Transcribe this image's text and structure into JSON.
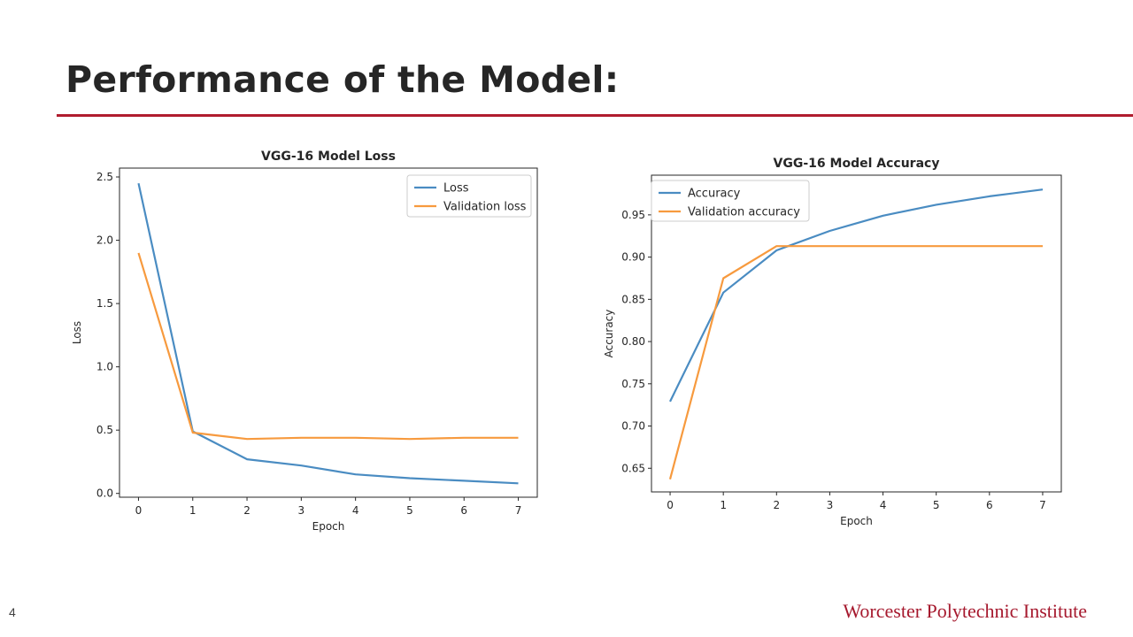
{
  "slide": {
    "title": "Performance of the Model:",
    "number": "4",
    "footer": "Worcester Polytechnic Institute"
  },
  "colors": {
    "accent": "#b01c2e",
    "series_train": "#4a8cc2",
    "series_val": "#f79a3e"
  },
  "chart_data": [
    {
      "type": "line",
      "title": "VGG-16 Model Loss",
      "xlabel": "Epoch",
      "ylabel": "Loss",
      "x": [
        0,
        1,
        2,
        3,
        4,
        5,
        6,
        7
      ],
      "xticks": [
        "0",
        "1",
        "2",
        "3",
        "4",
        "5",
        "6",
        "7"
      ],
      "yticks": [
        "0.0",
        "0.5",
        "1.0",
        "1.5",
        "2.0",
        "2.5"
      ],
      "xlim": [
        -0.35,
        7.35
      ],
      "ylim": [
        -0.03,
        2.57
      ],
      "grid": false,
      "legend_position": "top-right",
      "series": [
        {
          "name": "Loss",
          "values": [
            2.45,
            0.49,
            0.27,
            0.22,
            0.15,
            0.12,
            0.1,
            0.08
          ]
        },
        {
          "name": "Validation loss",
          "values": [
            1.9,
            0.48,
            0.43,
            0.44,
            0.44,
            0.43,
            0.44,
            0.44
          ]
        }
      ]
    },
    {
      "type": "line",
      "title": "VGG-16 Model Accuracy",
      "xlabel": "Epoch",
      "ylabel": "Accuracy",
      "x": [
        0,
        1,
        2,
        3,
        4,
        5,
        6,
        7
      ],
      "xticks": [
        "0",
        "1",
        "2",
        "3",
        "4",
        "5",
        "6",
        "7"
      ],
      "yticks": [
        "0.65",
        "0.70",
        "0.75",
        "0.80",
        "0.85",
        "0.90",
        "0.95"
      ],
      "xlim": [
        -0.35,
        7.35
      ],
      "ylim": [
        0.622,
        0.997
      ],
      "grid": false,
      "legend_position": "top-left",
      "series": [
        {
          "name": "Accuracy",
          "values": [
            0.729,
            0.858,
            0.908,
            0.931,
            0.949,
            0.962,
            0.972,
            0.98
          ]
        },
        {
          "name": "Validation accuracy",
          "values": [
            0.637,
            0.875,
            0.913,
            0.913,
            0.913,
            0.913,
            0.913,
            0.913
          ]
        }
      ]
    }
  ]
}
